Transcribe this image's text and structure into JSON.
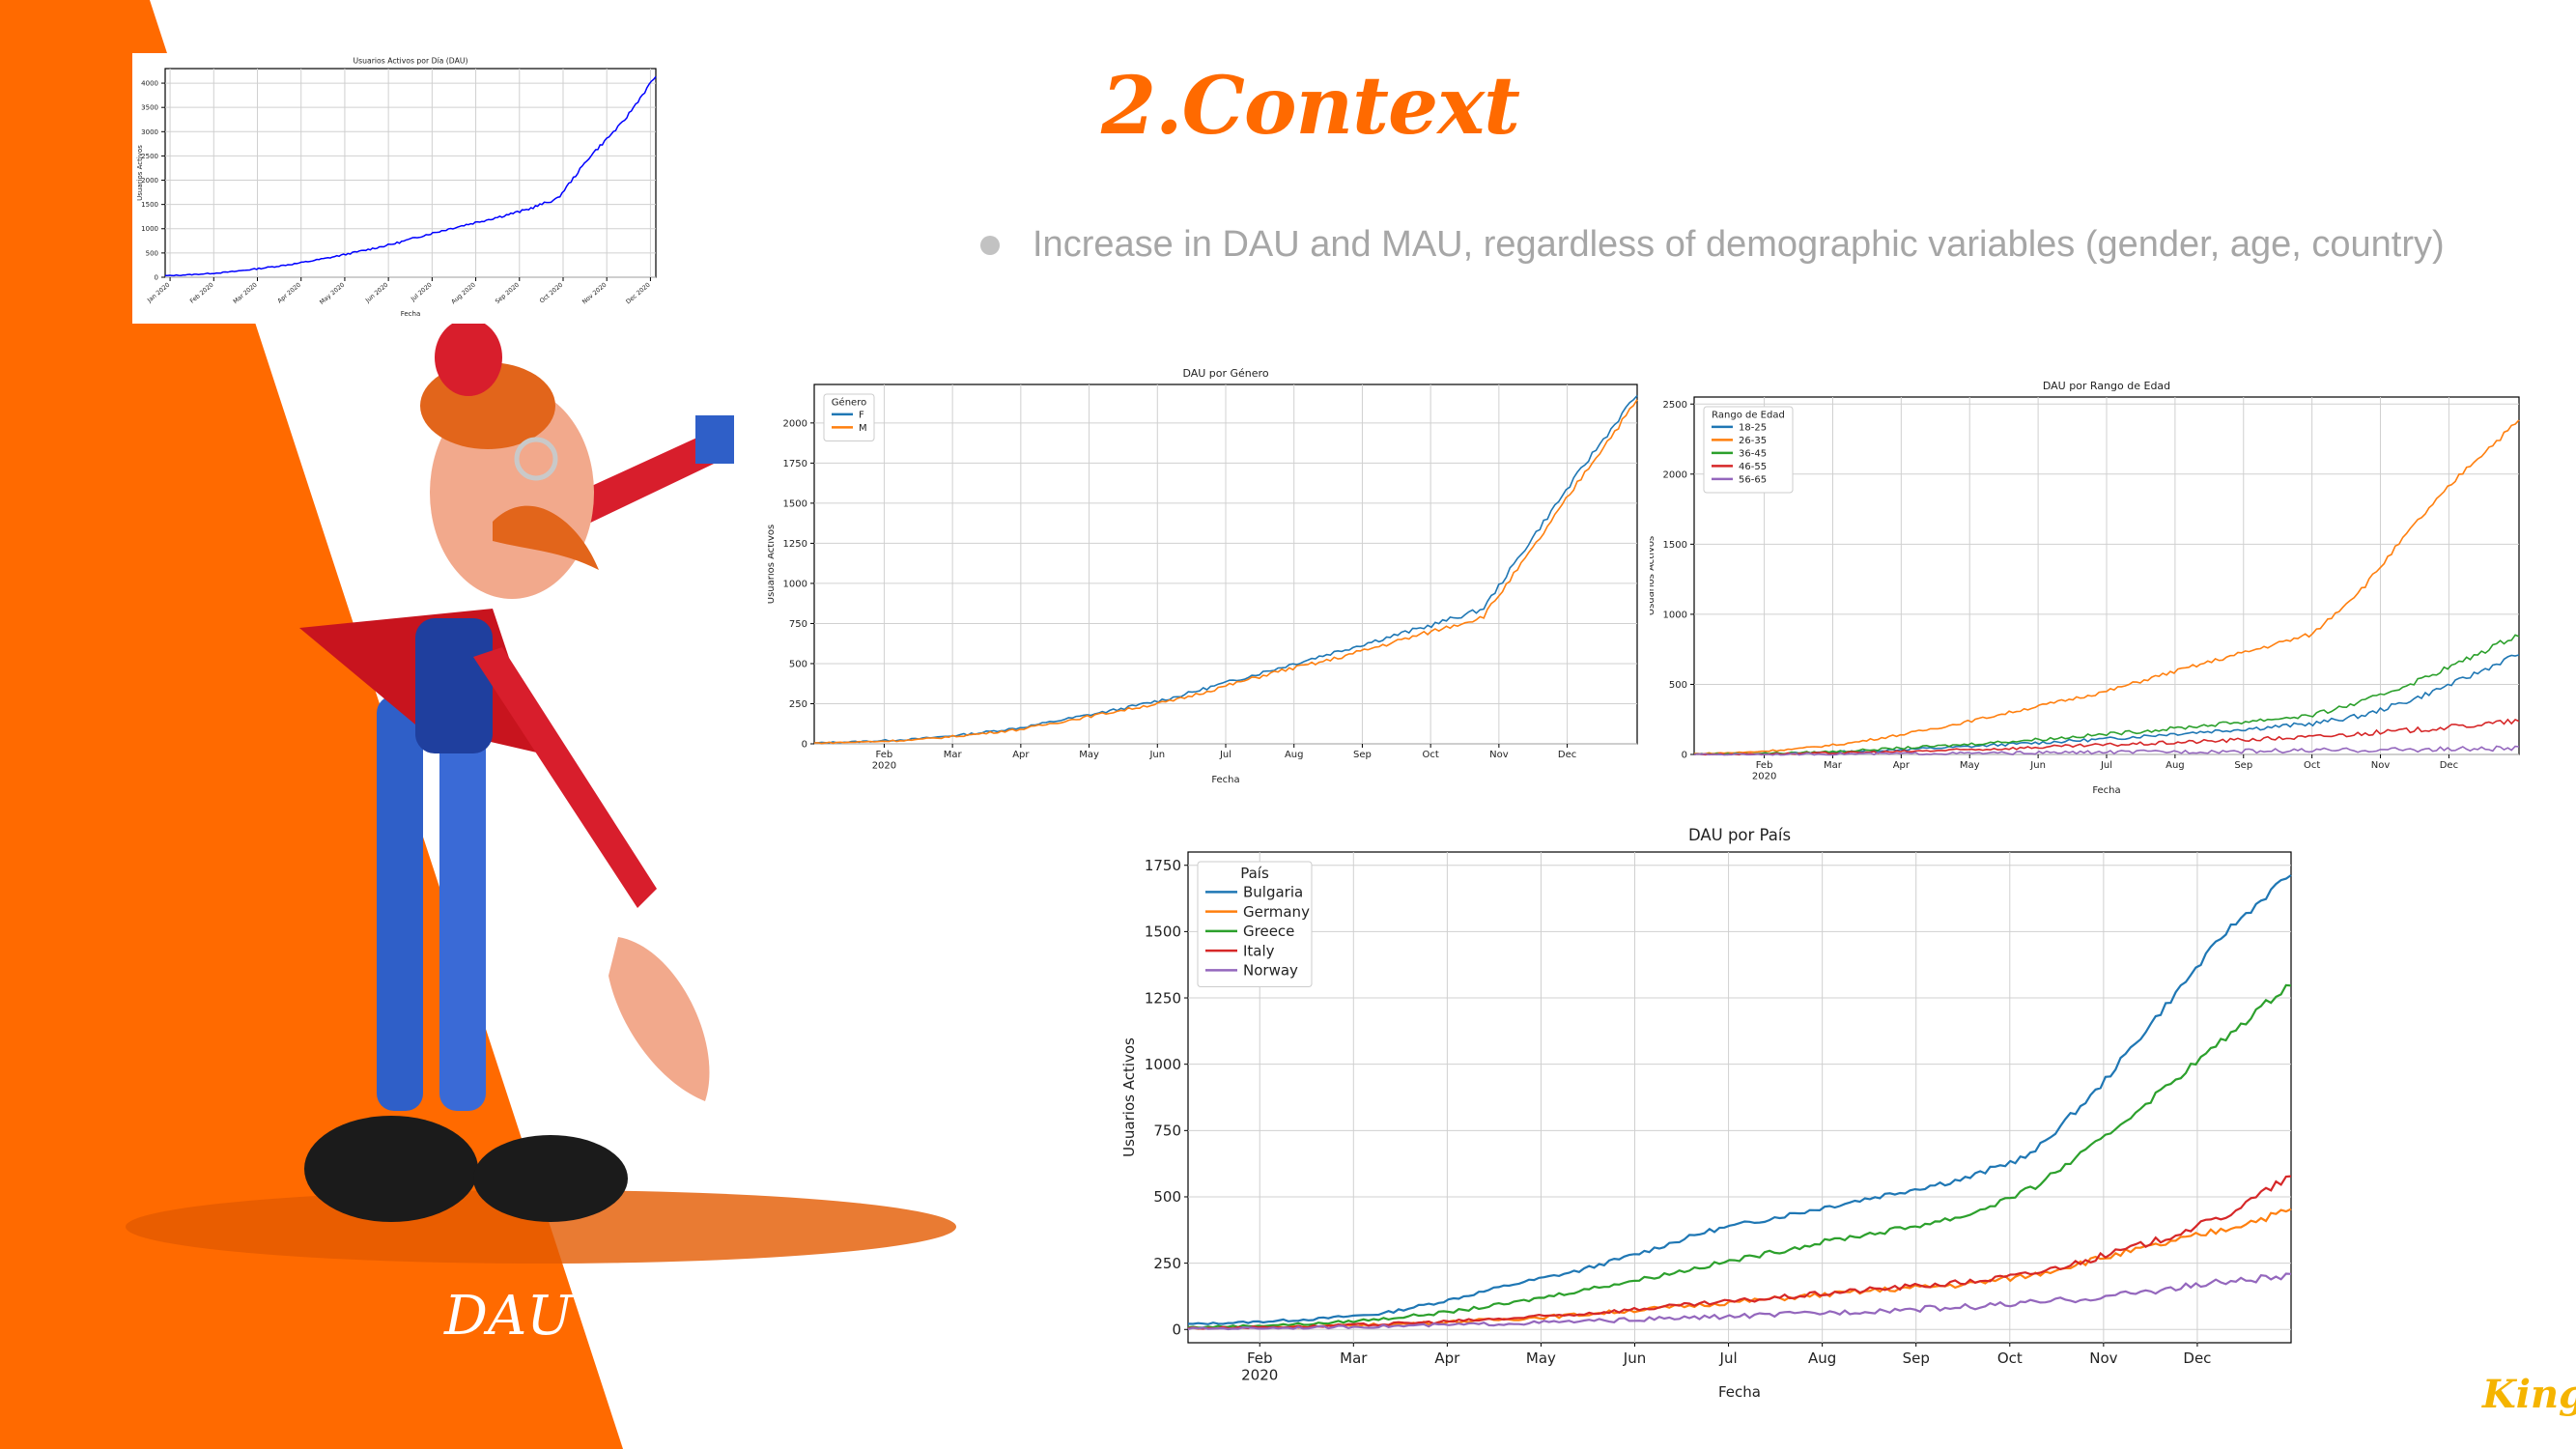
{
  "slide": {
    "title": "2.Context",
    "bullet": "Increase in DAU and MAU, regardless of demographic variables (gender, age, country)",
    "caption": "DAU",
    "logo": "King"
  },
  "colors": {
    "accent": "#ff6a00",
    "bullet_text": "#a6a6a6"
  },
  "chart_data": [
    {
      "type": "line",
      "title": "Usuarios Activos por Día (DAU)",
      "xlabel": "Fecha",
      "ylabel": "Usuarios Activos",
      "x_ticks": [
        "Jan 2020",
        "Feb 2020",
        "Mar 2020",
        "Apr 2020",
        "May 2020",
        "Jun 2020",
        "Jul 2020",
        "Aug 2020",
        "Sep 2020",
        "Oct 2020",
        "Nov 2020",
        "Dec 2020"
      ],
      "y_ticks": [
        0,
        500,
        1000,
        1500,
        2000,
        2500,
        3000,
        3500,
        4000
      ],
      "ylim": [
        0,
        4300
      ],
      "grid": true,
      "series": [
        {
          "color": "#0000ff",
          "values": [
            30,
            60,
            110,
            190,
            280,
            400,
            540,
            690,
            880,
            1050,
            1210,
            1380,
            1620,
            2500,
            3200,
            4150
          ]
        }
      ]
    },
    {
      "type": "line",
      "title": "DAU por Género",
      "xlabel": "Fecha",
      "ylabel": "Usuarios Activos",
      "x_ticks": [
        "Feb\n2020",
        "Mar",
        "Apr",
        "May",
        "Jun",
        "Jul",
        "Aug",
        "Sep",
        "Oct",
        "Nov",
        "Dec"
      ],
      "y_ticks": [
        0,
        250,
        500,
        750,
        1000,
        1250,
        1500,
        1750,
        2000
      ],
      "ylim": [
        0,
        2240
      ],
      "grid": true,
      "legend": {
        "title": "Género",
        "position": "top-left"
      },
      "series": [
        {
          "name": "F",
          "color": "#1f77b4",
          "values": [
            5,
            15,
            30,
            60,
            100,
            160,
            220,
            290,
            380,
            470,
            560,
            650,
            740,
            840,
            1300,
            1750,
            2180
          ]
        },
        {
          "name": "M",
          "color": "#ff7f0e",
          "values": [
            5,
            12,
            25,
            55,
            90,
            150,
            210,
            270,
            360,
            450,
            520,
            610,
            700,
            790,
            1230,
            1700,
            2140
          ]
        }
      ]
    },
    {
      "type": "line",
      "title": "DAU por Rango de Edad",
      "xlabel": "Fecha",
      "ylabel": "Usuarios Activos",
      "x_ticks": [
        "Feb\n2020",
        "Mar",
        "Apr",
        "May",
        "Jun",
        "Jul",
        "Aug",
        "Sep",
        "Oct",
        "Nov",
        "Dec"
      ],
      "y_ticks": [
        0,
        500,
        1000,
        1500,
        2000,
        2500
      ],
      "ylim": [
        0,
        2550
      ],
      "grid": true,
      "legend": {
        "title": "Rango de Edad",
        "position": "top-left"
      },
      "series": [
        {
          "name": "18-25",
          "color": "#1f77b4",
          "values": [
            2,
            5,
            10,
            20,
            35,
            50,
            70,
            90,
            110,
            140,
            165,
            190,
            220,
            280,
            400,
            550,
            720
          ]
        },
        {
          "name": "26-35",
          "color": "#ff7f0e",
          "values": [
            5,
            15,
            40,
            80,
            140,
            210,
            290,
            370,
            450,
            560,
            660,
            760,
            860,
            1200,
            1650,
            2050,
            2380
          ]
        },
        {
          "name": "36-45",
          "color": "#2ca02c",
          "values": [
            2,
            6,
            12,
            25,
            45,
            65,
            90,
            115,
            145,
            175,
            210,
            245,
            280,
            380,
            520,
            680,
            860
          ]
        },
        {
          "name": "46-55",
          "color": "#d62728",
          "values": [
            1,
            3,
            6,
            12,
            20,
            30,
            42,
            55,
            68,
            80,
            95,
            110,
            125,
            150,
            175,
            205,
            240
          ]
        },
        {
          "name": "56-65",
          "color": "#9467bd",
          "values": [
            0,
            1,
            2,
            4,
            6,
            8,
            10,
            13,
            16,
            19,
            22,
            25,
            28,
            31,
            35,
            38,
            42
          ]
        }
      ]
    },
    {
      "type": "line",
      "title": "DAU por País",
      "xlabel": "Fecha",
      "ylabel": "Usuarios Activos",
      "x_ticks": [
        "Feb\n2020",
        "Mar",
        "Apr",
        "May",
        "Jun",
        "Jul",
        "Aug",
        "Sep",
        "Oct",
        "Nov",
        "Dec"
      ],
      "y_ticks": [
        0,
        250,
        500,
        750,
        1000,
        1250,
        1500,
        1750
      ],
      "ylim": [
        -50,
        1800
      ],
      "grid": true,
      "legend": {
        "title": "País",
        "position": "top-left"
      },
      "series": [
        {
          "name": "Bulgaria",
          "color": "#1f77b4",
          "values": [
            20,
            28,
            40,
            60,
            110,
            170,
            220,
            290,
            370,
            420,
            470,
            520,
            570,
            660,
            900,
            1200,
            1500,
            1720
          ]
        },
        {
          "name": "Germany",
          "color": "#ff7f0e",
          "values": [
            5,
            8,
            12,
            18,
            28,
            40,
            55,
            75,
            95,
            115,
            135,
            155,
            170,
            205,
            265,
            320,
            380,
            450
          ]
        },
        {
          "name": "Greece",
          "color": "#2ca02c",
          "values": [
            8,
            14,
            22,
            40,
            65,
            100,
            145,
            190,
            240,
            290,
            340,
            380,
            430,
            530,
            700,
            900,
            1100,
            1310
          ]
        },
        {
          "name": "Italy",
          "color": "#d62728",
          "values": [
            5,
            8,
            12,
            20,
            30,
            42,
            58,
            78,
            98,
            118,
            140,
            160,
            178,
            210,
            270,
            340,
            430,
            580
          ]
        },
        {
          "name": "Norway",
          "color": "#9467bd",
          "values": [
            3,
            5,
            8,
            12,
            17,
            23,
            30,
            38,
            46,
            55,
            65,
            75,
            85,
            100,
            120,
            150,
            180,
            200
          ]
        }
      ]
    }
  ]
}
